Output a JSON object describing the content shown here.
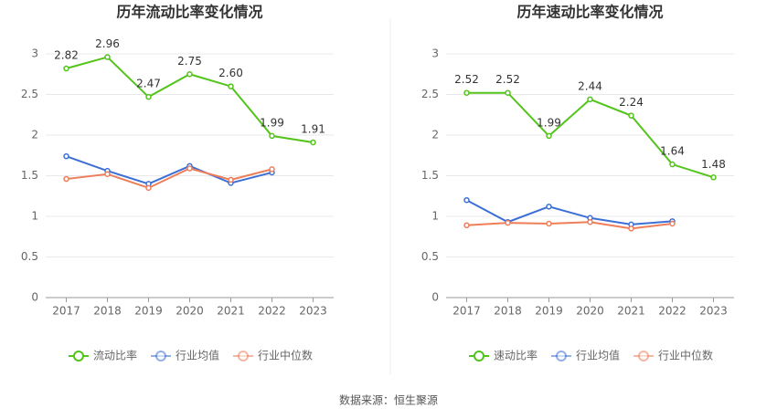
{
  "chart_data": [
    {
      "type": "line",
      "title": "历年流动比率变化情况",
      "categories": [
        "2017",
        "2018",
        "2019",
        "2020",
        "2021",
        "2022",
        "2023"
      ],
      "ylim": [
        0,
        3
      ],
      "yticks": [
        0,
        0.5,
        1,
        1.5,
        2,
        2.5,
        3
      ],
      "grid": true,
      "legend": "bottom",
      "series": [
        {
          "name": "流动比率",
          "color": "#52c41a",
          "values": [
            2.82,
            2.96,
            2.47,
            2.75,
            2.6,
            1.99,
            1.91
          ],
          "value_labels": [
            "2.82",
            "2.96",
            "2.47",
            "2.75",
            "2.60",
            "1.99",
            "1.91"
          ]
        },
        {
          "name": "行业均值",
          "color": "#3c6fd6",
          "values": [
            1.74,
            1.56,
            1.4,
            1.62,
            1.41,
            1.54,
            null
          ]
        },
        {
          "name": "行业中位数",
          "color": "#ee7e5a",
          "values": [
            1.46,
            1.52,
            1.35,
            1.59,
            1.45,
            1.58,
            null
          ]
        }
      ]
    },
    {
      "type": "line",
      "title": "历年速动比率变化情况",
      "categories": [
        "2017",
        "2018",
        "2019",
        "2020",
        "2021",
        "2022",
        "2023"
      ],
      "ylim": [
        0,
        3
      ],
      "yticks": [
        0,
        0.5,
        1,
        1.5,
        2,
        2.5,
        3
      ],
      "grid": true,
      "legend": "bottom",
      "series": [
        {
          "name": "速动比率",
          "color": "#52c41a",
          "values": [
            2.52,
            2.52,
            1.99,
            2.44,
            2.24,
            1.64,
            1.48
          ],
          "value_labels": [
            "2.52",
            "2.52",
            "1.99",
            "2.44",
            "2.24",
            "1.64",
            "1.48"
          ]
        },
        {
          "name": "行业均值",
          "color": "#3c6fd6",
          "values": [
            1.2,
            0.93,
            1.12,
            0.98,
            0.9,
            0.94,
            null
          ]
        },
        {
          "name": "行业中位数",
          "color": "#ee7e5a",
          "values": [
            0.89,
            0.92,
            0.91,
            0.93,
            0.85,
            0.91,
            null
          ]
        }
      ]
    }
  ],
  "source": "数据来源：恒生聚源"
}
